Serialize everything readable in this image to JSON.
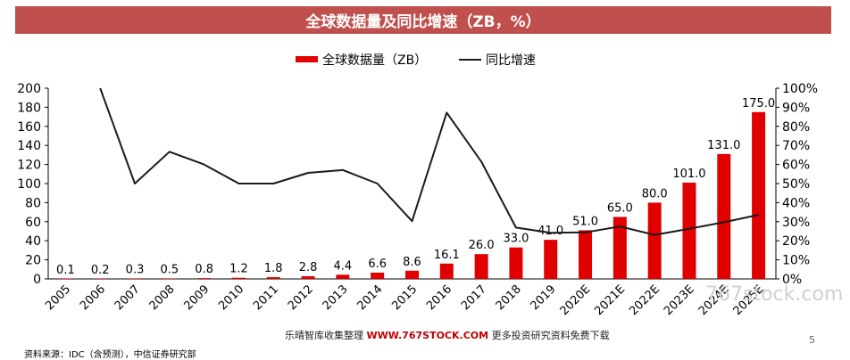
{
  "title": "全球数据量及同比增速（ZB，%）",
  "legend": {
    "bar_label": "全球数据量（ZB）",
    "line_label": "同比增速"
  },
  "source": "资料来源：IDC（含预测），中信证券研究部",
  "watermark": {
    "prefix": "乐晴智库收集整理",
    "url": "WWW.767STOCK.COM",
    "suffix": "更多投资研究资料免费下载",
    "right": "767stock.com"
  },
  "page_number": "5",
  "colors": {
    "bar": "#e00000",
    "line": "#1a1a1a",
    "title_bg": "#c0504d"
  },
  "chart_data": {
    "type": "bar",
    "categories": [
      "2005",
      "2006",
      "2007",
      "2008",
      "2009",
      "2010",
      "2011",
      "2012",
      "2013",
      "2014",
      "2015",
      "2016",
      "2017",
      "2018",
      "2019",
      "2020E",
      "2021E",
      "2022E",
      "2023E",
      "2024E",
      "2025E"
    ],
    "series": [
      {
        "name": "全球数据量（ZB）",
        "type": "bar",
        "axis": "left",
        "values": [
          0.1,
          0.2,
          0.3,
          0.5,
          0.8,
          1.2,
          1.8,
          2.8,
          4.4,
          6.6,
          8.6,
          16.1,
          26.0,
          33.0,
          41.0,
          51.0,
          65.0,
          80.0,
          101.0,
          131.0,
          175.0
        ],
        "labels": [
          "0.1",
          "0.2",
          "0.3",
          "0.5",
          "0.8",
          "1.2",
          "1.8",
          "2.8",
          "4.4",
          "6.6",
          "8.6",
          "16.1",
          "26.0",
          "33.0",
          "41.0",
          "51.0",
          "65.0",
          "80.0",
          "101.0",
          "131.0",
          "175.0"
        ]
      },
      {
        "name": "同比增速",
        "type": "line",
        "axis": "right",
        "values": [
          null,
          100,
          50,
          66.7,
          60,
          50,
          50,
          55.6,
          57.1,
          50,
          30.3,
          87.2,
          61.5,
          26.9,
          24.2,
          24.4,
          27.5,
          23.1,
          26.3,
          29.7,
          33.6
        ]
      }
    ],
    "y_left": {
      "min": 0,
      "max": 200,
      "ticks": [
        "0",
        "20",
        "40",
        "60",
        "80",
        "100",
        "120",
        "140",
        "160",
        "180",
        "200"
      ]
    },
    "y_right": {
      "min": 0,
      "max": 100,
      "ticks": [
        "0%",
        "10%",
        "20%",
        "30%",
        "40%",
        "50%",
        "60%",
        "70%",
        "80%",
        "90%",
        "100%"
      ]
    },
    "legend_position": "top",
    "grid": false
  }
}
